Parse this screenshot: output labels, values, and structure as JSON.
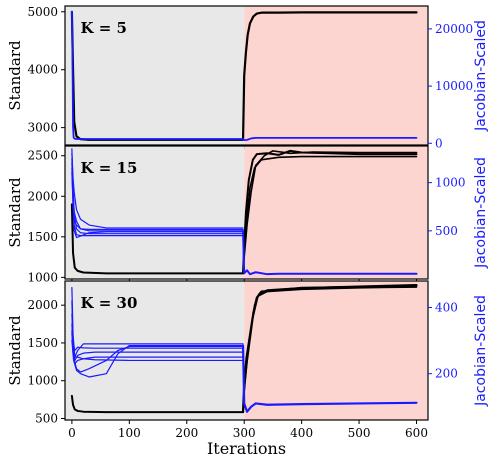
{
  "figure": {
    "xlabel": "Iterations",
    "x_ticks": [
      "0",
      "100",
      "200",
      "300",
      "400",
      "500",
      "600"
    ],
    "phase_split_iteration": 300,
    "phase_colors": {
      "first": "#e8e8e8",
      "second": "#fdd5d0"
    },
    "colors": {
      "standard": "#000000",
      "jacobian": "#1a1aff"
    }
  },
  "chart_data": [
    {
      "type": "line",
      "panel": "K = 5",
      "k_label": "K = 5",
      "xlim": [
        -12,
        620
      ],
      "left_axis": {
        "label": "Standard",
        "ylim": [
          2700,
          5100
        ],
        "ticks": [
          3000,
          4000,
          5000
        ],
        "tick_labels": [
          "3000",
          "4000",
          "5000"
        ]
      },
      "right_axis": {
        "label": "Jacobian-Scaled",
        "ylim": [
          -300,
          24000
        ],
        "ticks": [
          0,
          10000,
          20000
        ],
        "tick_labels": [
          "0",
          "10000",
          "20000"
        ]
      },
      "series": [
        {
          "axis": "left",
          "color": "#000000",
          "width": 2.2,
          "x": [
            0,
            2,
            4,
            8,
            15,
            30,
            100,
            200,
            298,
            300,
            303,
            306,
            310,
            316,
            322,
            330,
            360,
            400,
            500,
            600
          ],
          "y": [
            5000,
            4000,
            3100,
            2850,
            2800,
            2790,
            2790,
            2790,
            2790,
            3900,
            4300,
            4600,
            4800,
            4920,
            4970,
            4985,
            4985,
            4990,
            4990,
            4990
          ]
        },
        {
          "axis": "right",
          "color": "#1a1aff",
          "width": 1.8,
          "x": [
            0,
            1,
            2,
            3,
            5,
            8,
            20,
            100,
            200,
            298,
            300,
            305,
            312,
            320,
            340,
            400,
            500,
            600
          ],
          "y": [
            23000,
            15000,
            3000,
            1000,
            800,
            750,
            750,
            750,
            750,
            750,
            550,
            600,
            850,
            950,
            950,
            950,
            950,
            950
          ]
        }
      ]
    },
    {
      "type": "line",
      "panel": "K = 15",
      "k_label": "K = 15",
      "xlim": [
        -12,
        620
      ],
      "left_axis": {
        "label": "Standard",
        "ylim": [
          980,
          2620
        ],
        "ticks": [
          1000,
          1500,
          2000,
          2500
        ],
        "tick_labels": [
          "1000",
          "1500",
          "2000",
          "2500"
        ]
      },
      "right_axis": {
        "label": "Jacobian-Scaled",
        "ylim": [
          0,
          1380
        ],
        "ticks": [
          500,
          1000
        ],
        "tick_labels": [
          "500",
          "1000"
        ]
      },
      "series": [
        {
          "axis": "left",
          "color": "#000000",
          "width": 2.0,
          "x": [
            0,
            2,
            5,
            10,
            20,
            60,
            150,
            298
          ],
          "y": [
            1900,
            1300,
            1120,
            1080,
            1060,
            1050,
            1050,
            1050
          ]
        },
        {
          "axis": "left",
          "color": "#000000",
          "width": 2.0,
          "x": [
            298,
            300,
            303,
            308,
            315,
            322,
            340,
            360,
            380,
            400,
            450,
            500,
            600
          ],
          "y": [
            1050,
            1400,
            1800,
            2200,
            2450,
            2520,
            2530,
            2510,
            2560,
            2540,
            2530,
            2520,
            2520
          ]
        },
        {
          "axis": "left",
          "color": "#000000",
          "width": 1.6,
          "x": [
            298,
            300,
            304,
            310,
            318,
            330,
            360,
            400,
            500,
            600
          ],
          "y": [
            1050,
            1300,
            1700,
            2100,
            2350,
            2450,
            2480,
            2490,
            2490,
            2490
          ]
        },
        {
          "axis": "left",
          "color": "#000000",
          "width": 1.6,
          "x": [
            298,
            300,
            305,
            312,
            320,
            335,
            350,
            380,
            420,
            500,
            600
          ],
          "y": [
            1050,
            1250,
            1650,
            2050,
            2380,
            2500,
            2560,
            2530,
            2545,
            2540,
            2540
          ]
        },
        {
          "axis": "right",
          "color": "#1a1aff",
          "width": 1.2,
          "x": [
            0,
            2,
            4,
            8,
            15,
            30,
            60,
            100,
            200,
            298
          ],
          "y": [
            1300,
            1050,
            900,
            720,
            620,
            560,
            530,
            530,
            530,
            530
          ]
        },
        {
          "axis": "right",
          "color": "#1a1aff",
          "width": 1.2,
          "x": [
            0,
            2,
            4,
            8,
            15,
            30,
            60,
            100,
            200,
            298
          ],
          "y": [
            1200,
            900,
            700,
            600,
            520,
            500,
            500,
            500,
            500,
            500
          ]
        },
        {
          "axis": "right",
          "color": "#1a1aff",
          "width": 1.2,
          "x": [
            0,
            2,
            4,
            8,
            15,
            30,
            60,
            100,
            200,
            298
          ],
          "y": [
            1100,
            800,
            600,
            560,
            520,
            515,
            515,
            515,
            515,
            515
          ]
        },
        {
          "axis": "right",
          "color": "#1a1aff",
          "width": 1.2,
          "x": [
            0,
            2,
            4,
            8,
            15,
            30,
            60,
            100,
            200,
            298
          ],
          "y": [
            1350,
            950,
            680,
            520,
            480,
            470,
            470,
            470,
            470,
            470
          ]
        },
        {
          "axis": "right",
          "color": "#1a1aff",
          "width": 1.2,
          "x": [
            0,
            2,
            4,
            8,
            15,
            30,
            60,
            100,
            200,
            298
          ],
          "y": [
            1250,
            850,
            560,
            460,
            450,
            450,
            450,
            450,
            450,
            450
          ]
        },
        {
          "axis": "right",
          "color": "#1a1aff",
          "width": 1.2,
          "x": [
            0,
            2,
            4,
            8,
            15,
            30,
            60,
            100,
            200,
            298
          ],
          "y": [
            1150,
            750,
            500,
            430,
            445,
            480,
            490,
            490,
            490,
            490
          ]
        },
        {
          "axis": "right",
          "color": "#1a1aff",
          "width": 2.0,
          "x": [
            298,
            300,
            305,
            310,
            320,
            340,
            360,
            400,
            500,
            600
          ],
          "y": [
            500,
            60,
            90,
            50,
            70,
            50,
            55,
            55,
            55,
            55
          ]
        }
      ]
    },
    {
      "type": "line",
      "panel": "K = 30",
      "k_label": "K = 30",
      "xlim": [
        -12,
        620
      ],
      "left_axis": {
        "label": "Standard",
        "ylim": [
          480,
          2320
        ],
        "ticks": [
          500,
          1000,
          1500,
          2000
        ],
        "tick_labels": [
          "500",
          "1000",
          "1500",
          "2000"
        ]
      },
      "right_axis": {
        "label": "Jacobian-Scaled",
        "ylim": [
          60,
          480
        ],
        "ticks": [
          200,
          400
        ],
        "tick_labels": [
          "200",
          "400"
        ]
      },
      "series": [
        {
          "axis": "left",
          "color": "#000000",
          "width": 2.0,
          "x": [
            0,
            2,
            5,
            10,
            20,
            60,
            150,
            298
          ],
          "y": [
            800,
            680,
            620,
            600,
            590,
            585,
            585,
            585
          ]
        },
        {
          "axis": "left",
          "color": "#000000",
          "width": 2.2,
          "x": [
            298,
            300,
            304,
            310,
            316,
            322,
            330,
            360,
            400,
            500,
            600
          ],
          "y": [
            585,
            950,
            1300,
            1600,
            1900,
            2100,
            2180,
            2200,
            2230,
            2240,
            2260
          ]
        },
        {
          "axis": "left",
          "color": "#000000",
          "width": 1.6,
          "x": [
            298,
            300,
            305,
            312,
            318,
            326,
            340,
            380,
            450,
            600
          ],
          "y": [
            585,
            900,
            1250,
            1650,
            2000,
            2150,
            2200,
            2220,
            2240,
            2270
          ]
        },
        {
          "axis": "left",
          "color": "#000000",
          "width": 1.6,
          "x": [
            298,
            300,
            306,
            314,
            324,
            340,
            400,
            500,
            600
          ],
          "y": [
            585,
            850,
            1350,
            1800,
            2120,
            2180,
            2210,
            2230,
            2240
          ]
        },
        {
          "axis": "right",
          "color": "#1a1aff",
          "width": 1.2,
          "x": [
            0,
            2,
            5,
            10,
            20,
            40,
            100,
            200,
            298
          ],
          "y": [
            460,
            320,
            250,
            270,
            290,
            290,
            290,
            290,
            290
          ]
        },
        {
          "axis": "right",
          "color": "#1a1aff",
          "width": 1.2,
          "x": [
            0,
            2,
            5,
            10,
            20,
            40,
            100,
            200,
            298
          ],
          "y": [
            420,
            280,
            230,
            240,
            245,
            250,
            250,
            250,
            250
          ]
        },
        {
          "axis": "right",
          "color": "#1a1aff",
          "width": 1.2,
          "x": [
            0,
            2,
            5,
            10,
            20,
            40,
            100,
            200,
            298
          ],
          "y": [
            380,
            300,
            270,
            280,
            278,
            277,
            277,
            277,
            277
          ]
        },
        {
          "axis": "right",
          "color": "#1a1aff",
          "width": 1.2,
          "x": [
            0,
            2,
            5,
            10,
            20,
            40,
            100,
            200,
            298
          ],
          "y": [
            350,
            270,
            240,
            255,
            262,
            265,
            265,
            265,
            265
          ]
        },
        {
          "axis": "right",
          "color": "#1a1aff",
          "width": 1.2,
          "x": [
            0,
            2,
            5,
            10,
            20,
            40,
            100,
            200,
            298
          ],
          "y": [
            330,
            260,
            250,
            250,
            245,
            242,
            240,
            240,
            240
          ]
        },
        {
          "axis": "right",
          "color": "#1a1aff",
          "width": 1.2,
          "x": [
            0,
            3,
            8,
            15,
            30,
            60,
            80,
            100,
            200,
            298
          ],
          "y": [
            300,
            240,
            210,
            200,
            190,
            200,
            260,
            285,
            285,
            285
          ]
        },
        {
          "axis": "right",
          "color": "#1a1aff",
          "width": 1.2,
          "x": [
            0,
            3,
            8,
            15,
            30,
            60,
            80,
            100,
            200,
            298
          ],
          "y": [
            320,
            250,
            215,
            205,
            215,
            240,
            270,
            282,
            282,
            282
          ]
        },
        {
          "axis": "right",
          "color": "#1a1aff",
          "width": 2.2,
          "x": [
            298,
            300,
            305,
            312,
            320,
            340,
            400,
            500,
            600
          ],
          "y": [
            285,
            110,
            85,
            100,
            110,
            106,
            108,
            110,
            112
          ]
        }
      ]
    }
  ]
}
